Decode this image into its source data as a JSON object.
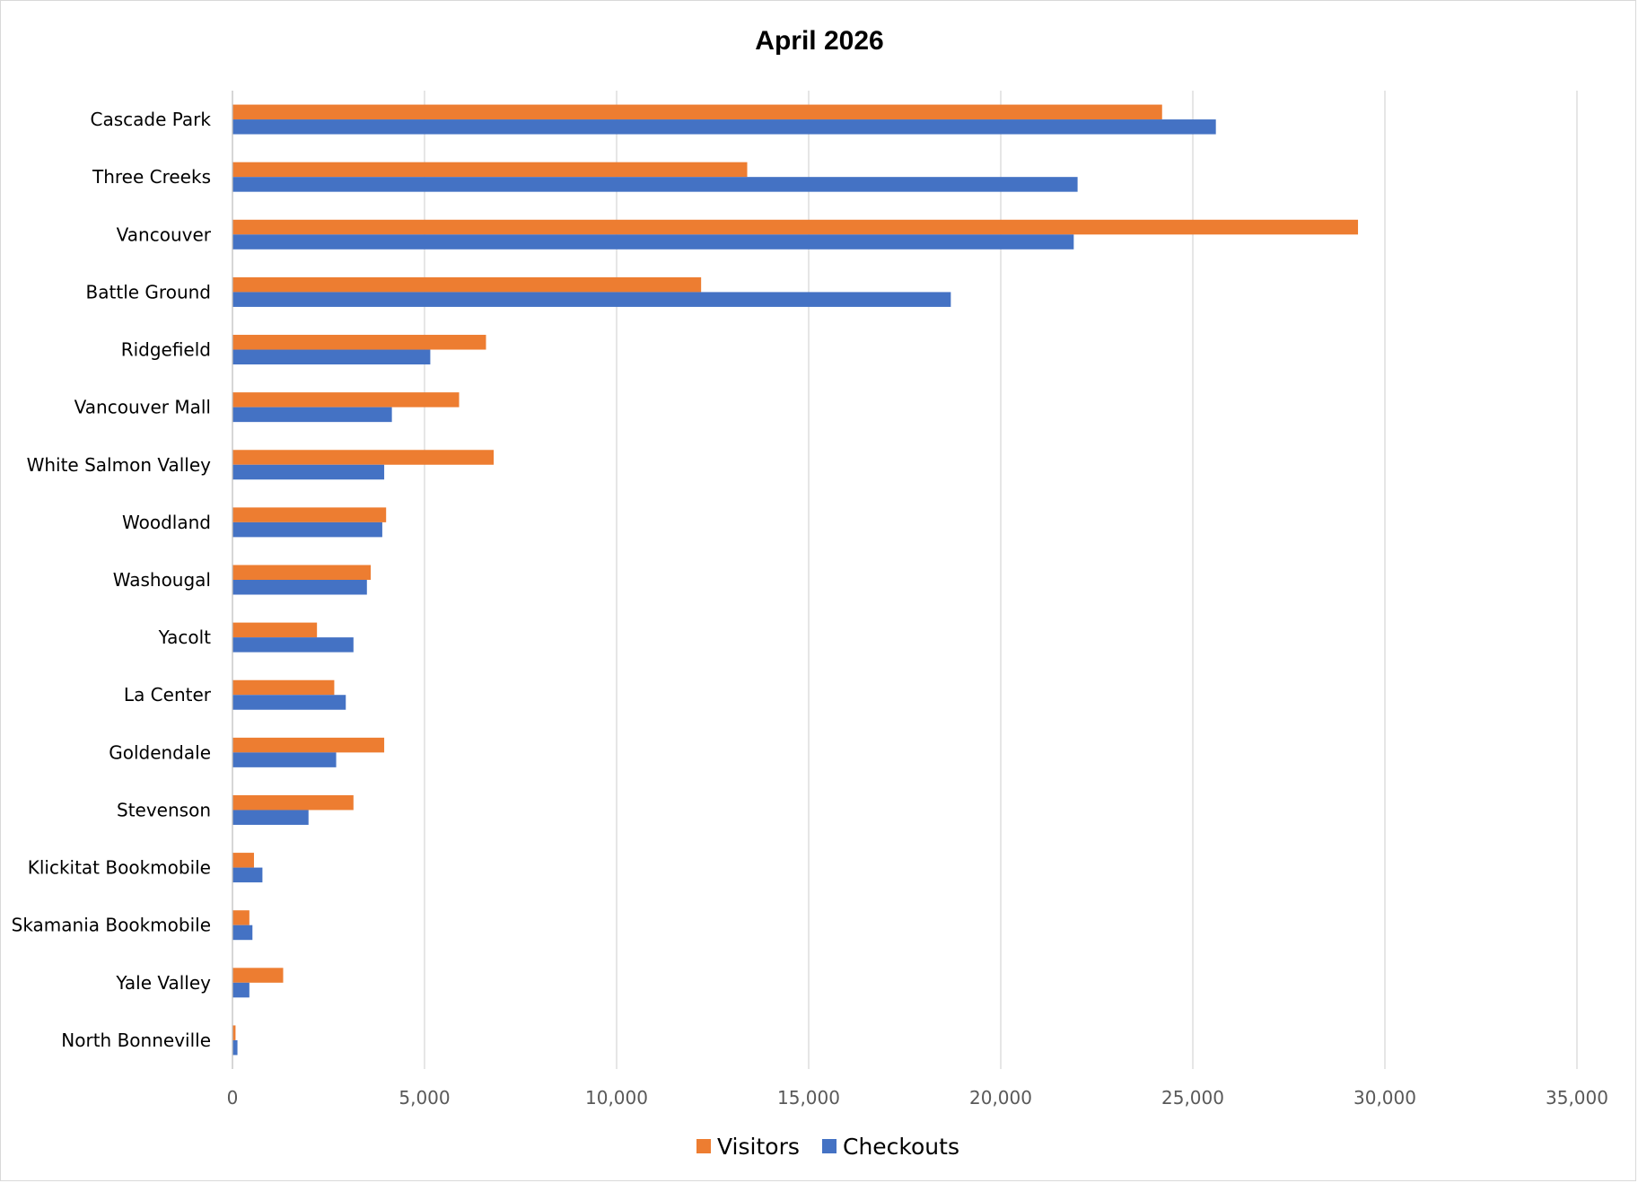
{
  "chart_data": {
    "type": "bar",
    "orientation": "horizontal",
    "title": "April 2026",
    "xlabel": "",
    "ylabel": "",
    "xlim": [
      0,
      35000
    ],
    "x_ticks": [
      0,
      5000,
      10000,
      15000,
      20000,
      25000,
      30000,
      35000
    ],
    "x_tick_labels": [
      "0",
      "5,000",
      "10,000",
      "15,000",
      "20,000",
      "25,000",
      "30,000",
      "35,000"
    ],
    "grid": "vertical",
    "legend_position": "bottom",
    "categories": [
      "Cascade Park",
      "Three Creeks",
      "Vancouver",
      "Battle Ground",
      "Ridgefield",
      "Vancouver Mall",
      "White Salmon Valley",
      "Woodland",
      "Washougal",
      "Yacolt",
      "La Center",
      "Goldendale",
      "Stevenson",
      "Klickitat Bookmobile",
      "Skamania Bookmobile",
      "Yale Valley",
      "North Bonneville"
    ],
    "series": [
      {
        "name": "Visitors",
        "color": "#ED7D31",
        "values": [
          24200,
          13400,
          29300,
          12200,
          6600,
          5900,
          6800,
          4000,
          3600,
          2200,
          2650,
          3950,
          3150,
          560,
          440,
          1320,
          80
        ]
      },
      {
        "name": "Checkouts",
        "color": "#4472C4",
        "values": [
          25600,
          22000,
          21900,
          18700,
          5150,
          4150,
          3950,
          3900,
          3500,
          3150,
          2950,
          2700,
          1980,
          780,
          520,
          440,
          130
        ]
      }
    ]
  }
}
